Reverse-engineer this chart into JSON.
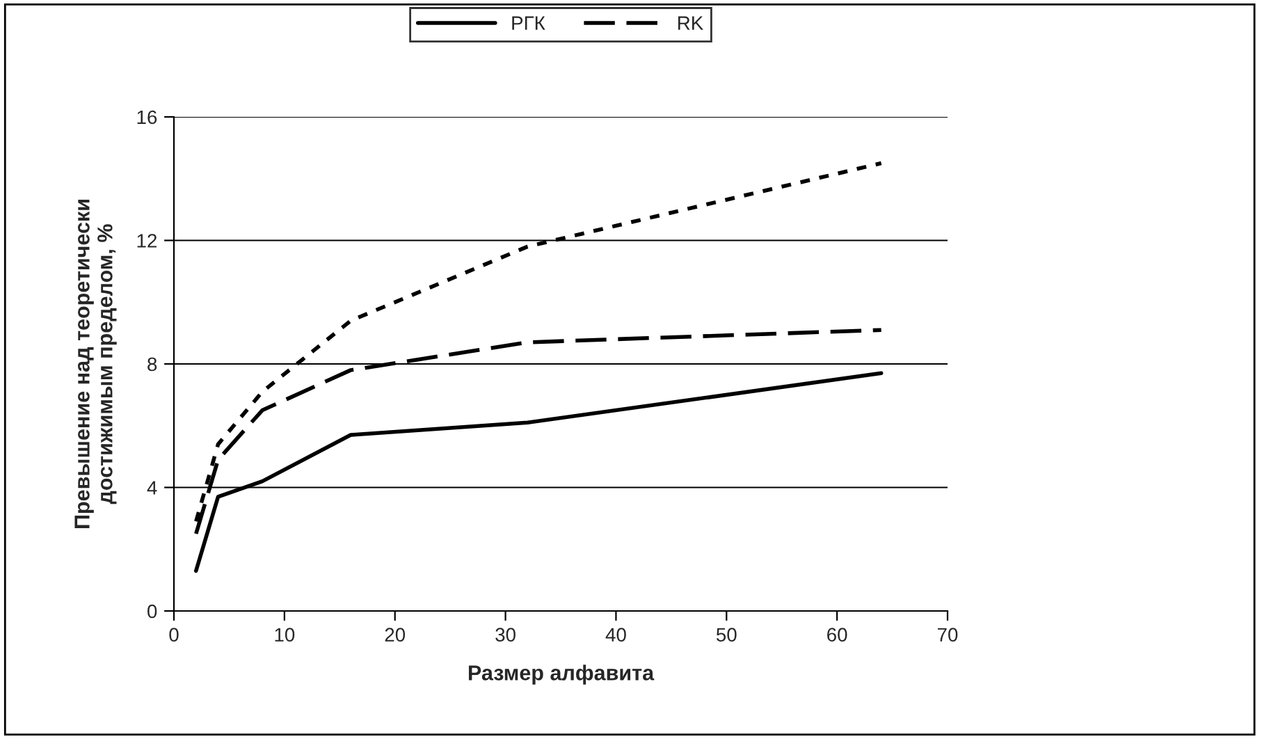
{
  "chart_data": {
    "type": "line",
    "xlabel": "Размер алфавита",
    "ylabel": "Превышение над теоретически\nдостижимым пределом, %",
    "x": [
      2,
      4,
      8,
      16,
      32,
      64
    ],
    "series": [
      {
        "name": "РГК",
        "color": "#000000",
        "line_style": "solid",
        "values": [
          1.3,
          3.7,
          4.2,
          5.7,
          6.1,
          7.7
        ]
      },
      {
        "name": "RK",
        "color": "#000000",
        "line_style": "dashed",
        "values": [
          2.5,
          4.9,
          6.5,
          7.8,
          8.7,
          9.1
        ]
      },
      {
        "color": "#000000",
        "line_style": "dotted",
        "values": [
          2.9,
          5.4,
          7.1,
          9.4,
          11.8,
          14.5
        ]
      }
    ],
    "xlim": [
      0,
      70
    ],
    "xticks": [
      0,
      10,
      20,
      30,
      40,
      50,
      60,
      70
    ],
    "ylim": [
      0,
      16
    ],
    "yticks": [
      0,
      4,
      8,
      12,
      16
    ],
    "grid": "y",
    "legend": "top",
    "marker": "none"
  }
}
